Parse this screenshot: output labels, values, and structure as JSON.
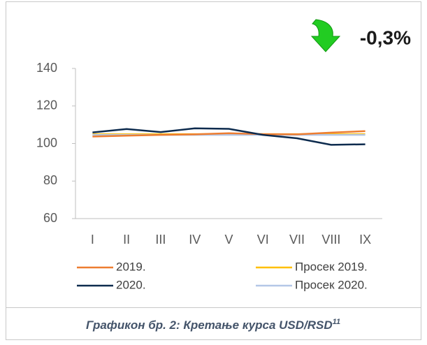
{
  "chart_data": {
    "type": "line",
    "annotation": "-0,3%",
    "caption": "Графикон бр. 2: Кретање курса USD/RSD",
    "caption_footnote": "11",
    "categories": [
      "I",
      "II",
      "III",
      "IV",
      "V",
      "VI",
      "VII",
      "VIII",
      "IX"
    ],
    "series": [
      {
        "name": "2019.",
        "color": "#ed7d31",
        "values": [
          103.7,
          104.2,
          104.6,
          104.9,
          105.5,
          105.0,
          104.9,
          105.8,
          106.6
        ]
      },
      {
        "name": "Просек 2019.",
        "color": "#ffc000",
        "values": [
          105.0,
          105.0,
          105.0,
          105.0,
          105.0,
          105.0,
          105.0,
          105.0,
          105.0
        ]
      },
      {
        "name": "2020.",
        "color": "#0d2b4e",
        "values": [
          105.9,
          107.7,
          106.1,
          108.1,
          107.8,
          104.6,
          102.8,
          99.3,
          99.6
        ]
      },
      {
        "name": "Просек 2020.",
        "color": "#b4c7e7",
        "values": [
          104.6,
          104.6,
          104.6,
          104.6,
          104.6,
          104.6,
          104.6,
          104.6,
          104.6
        ]
      }
    ],
    "ylim": [
      60,
      140
    ],
    "yticks": [
      60,
      80,
      100,
      120,
      140
    ]
  }
}
